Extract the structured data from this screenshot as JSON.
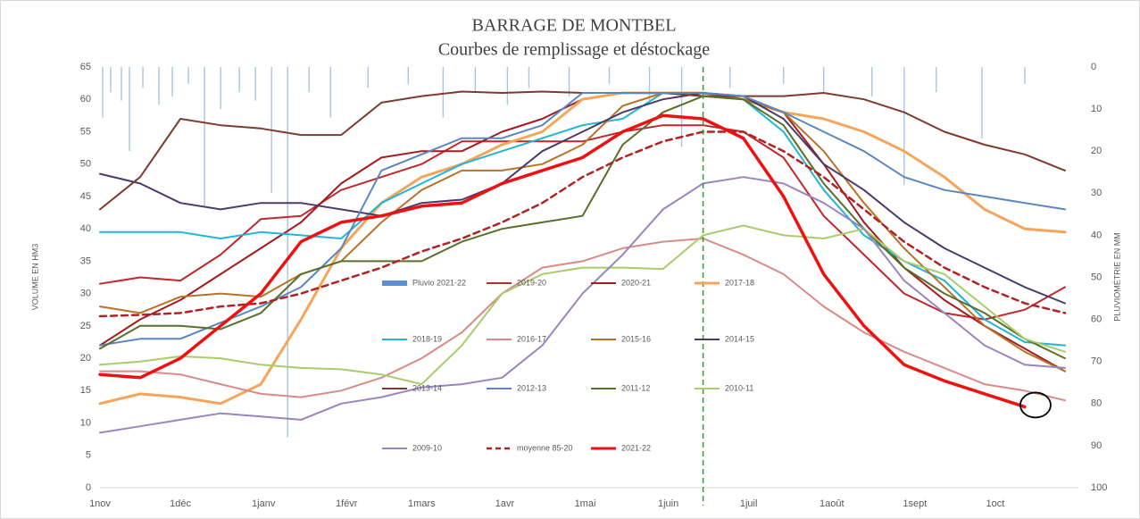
{
  "chart_data": {
    "type": "line",
    "title": "BARRAGE DE MONTBEL",
    "subtitle": "Courbes de remplissage et déstockage",
    "y_label": "VOLUME EN HM3",
    "y2_label": "PLUVIOMÉTRIE EN MM",
    "xlim": [
      0,
      365
    ],
    "xticks": [
      {
        "value": 0,
        "label": "1nov"
      },
      {
        "value": 30,
        "label": "1déc"
      },
      {
        "value": 61,
        "label": "1janv"
      },
      {
        "value": 92,
        "label": "1févr"
      },
      {
        "value": 120,
        "label": "1mars"
      },
      {
        "value": 151,
        "label": "1avr"
      },
      {
        "value": 181,
        "label": "1mai"
      },
      {
        "value": 212,
        "label": "1juin"
      },
      {
        "value": 242,
        "label": "1juil"
      },
      {
        "value": 273,
        "label": "1août"
      },
      {
        "value": 304,
        "label": "1sept"
      },
      {
        "value": 334,
        "label": "1oct"
      }
    ],
    "ylim": [
      0,
      65
    ],
    "yticks": [
      0,
      5,
      10,
      15,
      20,
      25,
      30,
      35,
      40,
      45,
      50,
      55,
      60,
      65
    ],
    "y2lim": [
      100,
      0
    ],
    "y2ticks": [
      0,
      10,
      20,
      30,
      40,
      50,
      60,
      70,
      80,
      90,
      100
    ],
    "grid": false,
    "vline_x": 225,
    "vline_color": "#2ca02c",
    "x": [
      0,
      15,
      30,
      45,
      60,
      75,
      90,
      105,
      120,
      135,
      150,
      165,
      180,
      195,
      210,
      225,
      240,
      255,
      270,
      285,
      300,
      315,
      330,
      345,
      360
    ],
    "series": [
      {
        "name": "Pluvio 2021-22",
        "type": "bar",
        "axis": "y2",
        "color": "#5b8fd0",
        "bar_color": "#a9c4e4",
        "x": [
          1,
          4,
          8,
          11,
          16,
          22,
          27,
          33,
          39,
          45,
          52,
          58,
          64,
          70,
          78,
          86,
          100,
          115,
          128,
          140,
          152,
          160,
          175,
          190,
          205,
          217,
          235,
          255,
          270,
          288,
          300,
          312,
          329,
          345
        ],
        "values": [
          12,
          6,
          8,
          20,
          5,
          9,
          7,
          4,
          33,
          10,
          6,
          8,
          30,
          88,
          6,
          12,
          5,
          4,
          12,
          6,
          9,
          5,
          7,
          4,
          8,
          19,
          5,
          4,
          6,
          7,
          28,
          6,
          17,
          4
        ]
      },
      {
        "name": "2019-20",
        "color": "#c0282d",
        "line_width": 2,
        "values": [
          31.5,
          32.5,
          32,
          36,
          41.5,
          42,
          46,
          48,
          50,
          53.5,
          53.5,
          53.5,
          53.5,
          55,
          56,
          56,
          55,
          51,
          42,
          36,
          30,
          27,
          26,
          27.5,
          31
        ]
      },
      {
        "name": "2020-21",
        "color": "#a31b1f",
        "line_width": 2,
        "values": [
          22,
          26,
          29,
          33,
          37,
          41,
          47,
          51,
          52,
          52,
          55,
          57,
          60,
          61,
          61,
          60.5,
          60,
          58,
          50,
          41,
          34,
          29,
          25,
          21.5,
          18
        ]
      },
      {
        "name": "2017-18",
        "color": "#f5a55a",
        "line_width": 3,
        "values": [
          13,
          14.5,
          14,
          13,
          16,
          26,
          37,
          44,
          48,
          50,
          53,
          55,
          60,
          61,
          61,
          61,
          60,
          58,
          57,
          55,
          52,
          48,
          43,
          40,
          39.5
        ]
      },
      {
        "name": "2018-19",
        "color": "#21b6d6",
        "line_width": 2,
        "values": [
          39.5,
          39.5,
          39.5,
          38.5,
          39.5,
          39,
          38.5,
          44,
          47,
          50,
          52,
          54,
          56,
          57,
          61,
          61,
          60,
          55,
          46,
          39,
          35,
          32,
          26,
          22.5,
          22
        ]
      },
      {
        "name": "2016-17",
        "color": "#d98a8a",
        "line_width": 2,
        "values": [
          18,
          18,
          17.5,
          16,
          14.5,
          14,
          15,
          17,
          20,
          24,
          30,
          34,
          35,
          37,
          38,
          38.5,
          36,
          33,
          28,
          24,
          21,
          18.5,
          16,
          15,
          13.5
        ]
      },
      {
        "name": "2015-16",
        "color": "#b8732a",
        "line_width": 2,
        "values": [
          28,
          27,
          29.5,
          30,
          29.5,
          33,
          35,
          41,
          46,
          49,
          49,
          50,
          53,
          59,
          61,
          61,
          60,
          58,
          52,
          44,
          37,
          31,
          25,
          21,
          18
        ]
      },
      {
        "name": "2014-15",
        "color": "#4b3a6b",
        "line_width": 2,
        "values": [
          48.5,
          47,
          44,
          43,
          44,
          44,
          43,
          42,
          44,
          44.5,
          47,
          52,
          55,
          58,
          60,
          61,
          60.5,
          57,
          50,
          46,
          41,
          37,
          34,
          31,
          28.5
        ]
      },
      {
        "name": "2013-14",
        "color": "#7f3a2f",
        "line_width": 2,
        "values": [
          43,
          48,
          57,
          56,
          55.5,
          54.5,
          54.5,
          59.5,
          60.5,
          61.2,
          61,
          61.2,
          61,
          61,
          61,
          60.5,
          60.5,
          60.5,
          61,
          60,
          58,
          55,
          53,
          51.5,
          49
        ]
      },
      {
        "name": "2012-13",
        "color": "#5b87c0",
        "line_width": 2,
        "values": [
          22,
          23,
          23,
          25.5,
          28,
          31,
          37,
          49,
          51.5,
          54,
          54,
          56,
          61,
          61,
          61,
          61,
          60.5,
          58,
          55,
          52,
          48,
          46,
          45,
          44,
          43
        ]
      },
      {
        "name": "2011-12",
        "color": "#59702a",
        "line_width": 2,
        "values": [
          21.5,
          25,
          25,
          24.5,
          27,
          33,
          35,
          35,
          35,
          38,
          40,
          41,
          42,
          53,
          58,
          60.5,
          60,
          56,
          47,
          40,
          34,
          30,
          27,
          23,
          20
        ]
      },
      {
        "name": "2010-11",
        "color": "#a9cc6a",
        "line_width": 2,
        "values": [
          19,
          19.5,
          20.3,
          20,
          19,
          18.5,
          18.3,
          17.5,
          16,
          22,
          30,
          33,
          34,
          34,
          33.8,
          39,
          40.5,
          39,
          38.5,
          40,
          35,
          33,
          28,
          23,
          21
        ]
      },
      {
        "name": "2009-10",
        "color": "#9a85bf",
        "line_width": 2,
        "values": [
          8.5,
          9.5,
          10.5,
          11.5,
          11,
          10.5,
          13,
          14,
          15.5,
          16,
          17,
          22,
          30,
          36,
          43,
          47,
          48,
          47,
          44,
          40,
          32,
          27,
          22,
          19,
          18.5
        ]
      },
      {
        "name": "moyenne 85-20",
        "color": "#b22222",
        "line_width": 2.5,
        "dashed": true,
        "values": [
          26.5,
          26.7,
          27,
          28,
          28.5,
          30,
          32,
          34,
          36.5,
          38.5,
          41,
          44,
          48,
          51,
          53.5,
          55,
          55,
          52,
          48,
          43,
          38,
          34,
          31,
          28.5,
          27
        ]
      },
      {
        "name": "2021-22",
        "color": "#ee1111",
        "line_width": 3.5,
        "values": [
          17.5,
          17,
          20,
          25,
          30,
          38,
          41,
          42,
          43.5,
          44,
          47,
          49,
          51,
          55,
          57.5,
          57,
          54,
          45,
          33,
          25,
          19,
          16.5,
          14.5,
          12.5,
          null
        ]
      }
    ]
  }
}
